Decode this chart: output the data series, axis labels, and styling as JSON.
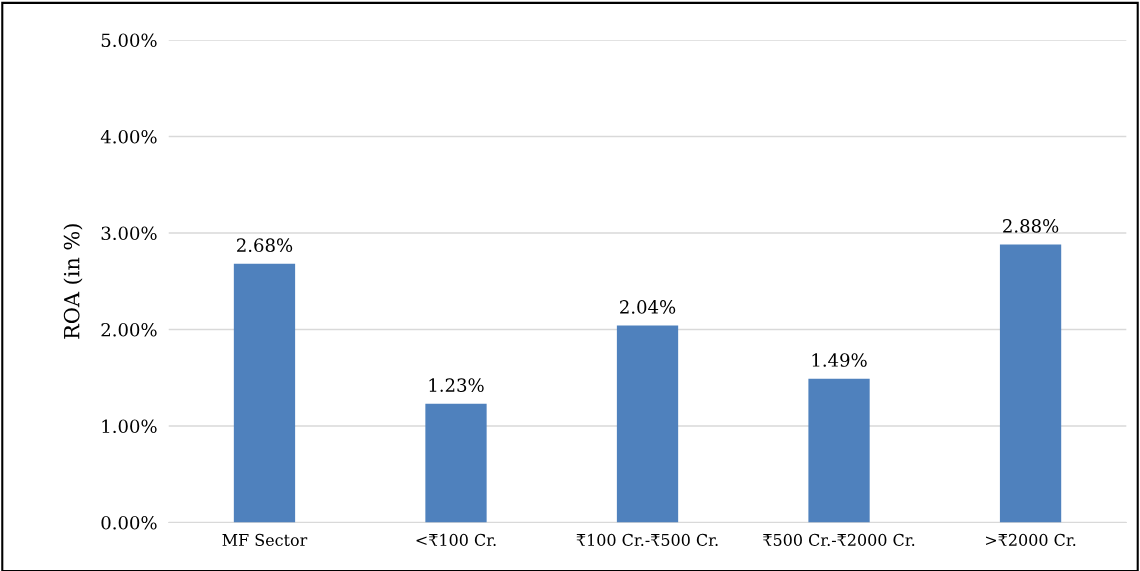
{
  "chart_data": {
    "type": "bar",
    "ylabel": "ROA (in %)",
    "categories": [
      "MF Sector",
      "<₹100 Cr.",
      "₹100 Cr.-₹500 Cr.",
      "₹500 Cr.-₹2000 Cr.",
      ">₹2000 Cr."
    ],
    "values": [
      2.68,
      1.23,
      2.04,
      1.49,
      2.88
    ],
    "value_labels": [
      "2.68%",
      "1.23%",
      "2.04%",
      "1.49%",
      "2.88%"
    ],
    "color": "#4f81bd",
    "ylim": [
      0,
      5
    ],
    "yticks": [
      {
        "value": 0,
        "label": "0.00%"
      },
      {
        "value": 1,
        "label": "1.00%"
      },
      {
        "value": 2,
        "label": "2.00%"
      },
      {
        "value": 3,
        "label": "3.00%"
      },
      {
        "value": 4,
        "label": "4.00%"
      },
      {
        "value": 5,
        "label": "5.00%"
      }
    ],
    "grid": "y"
  }
}
